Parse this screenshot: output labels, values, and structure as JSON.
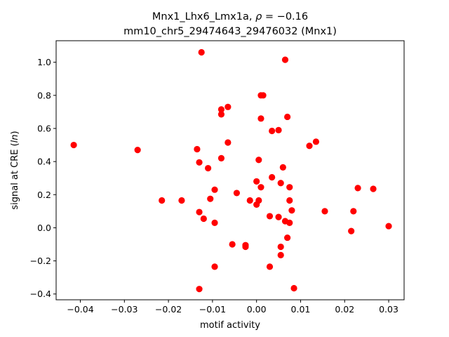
{
  "chart_data": {
    "type": "scatter",
    "title_line1": "Mnx1_Lhx6_Lmx1a, ",
    "title_rho": "ρ",
    "title_rho_value": " = −0.16",
    "title_line2": "mm10_chr5_29474643_29476032 (Mnx1)",
    "xlabel": "motif activity",
    "ylabel_prefix": "signal at CRE (",
    "ylabel_var": "ln",
    "ylabel_suffix": ")",
    "xlim": [
      -0.0455,
      0.0335
    ],
    "ylim": [
      -0.435,
      1.13
    ],
    "x_ticks": [
      -0.04,
      -0.03,
      -0.02,
      -0.01,
      0.0,
      0.01,
      0.02,
      0.03
    ],
    "x_tick_labels": [
      "−0.04",
      "−0.03",
      "−0.02",
      "−0.01",
      "0.00",
      "0.01",
      "0.02",
      "0.03"
    ],
    "y_ticks": [
      -0.4,
      -0.2,
      0.0,
      0.2,
      0.4,
      0.6,
      0.8,
      1.0
    ],
    "y_tick_labels": [
      "−0.4",
      "−0.2",
      "0.0",
      "0.2",
      "0.4",
      "0.6",
      "0.8",
      "1.0"
    ],
    "grid": false,
    "marker_color": "#ff0000",
    "points": [
      {
        "x": -0.0415,
        "y": 0.5
      },
      {
        "x": -0.027,
        "y": 0.47
      },
      {
        "x": -0.0215,
        "y": 0.165
      },
      {
        "x": -0.017,
        "y": 0.165
      },
      {
        "x": -0.0135,
        "y": 0.475
      },
      {
        "x": -0.013,
        "y": 0.395
      },
      {
        "x": -0.013,
        "y": 0.095
      },
      {
        "x": -0.013,
        "y": -0.37
      },
      {
        "x": -0.0125,
        "y": 1.06
      },
      {
        "x": -0.012,
        "y": 0.055
      },
      {
        "x": -0.011,
        "y": 0.36
      },
      {
        "x": -0.0105,
        "y": 0.175
      },
      {
        "x": -0.0095,
        "y": 0.23
      },
      {
        "x": -0.0095,
        "y": 0.03
      },
      {
        "x": -0.0095,
        "y": -0.235
      },
      {
        "x": -0.008,
        "y": 0.715
      },
      {
        "x": -0.008,
        "y": 0.685
      },
      {
        "x": -0.008,
        "y": 0.42
      },
      {
        "x": -0.0065,
        "y": 0.73
      },
      {
        "x": -0.0065,
        "y": 0.515
      },
      {
        "x": -0.0055,
        "y": -0.1
      },
      {
        "x": -0.0045,
        "y": 0.21
      },
      {
        "x": -0.0025,
        "y": -0.105
      },
      {
        "x": -0.0025,
        "y": -0.115
      },
      {
        "x": -0.0015,
        "y": 0.165
      },
      {
        "x": 0.0,
        "y": 0.28
      },
      {
        "x": 0.0,
        "y": 0.14
      },
      {
        "x": 0.0005,
        "y": 0.41
      },
      {
        "x": 0.0005,
        "y": 0.165
      },
      {
        "x": 0.001,
        "y": 0.8
      },
      {
        "x": 0.001,
        "y": 0.66
      },
      {
        "x": 0.001,
        "y": 0.245
      },
      {
        "x": 0.0015,
        "y": 0.8
      },
      {
        "x": 0.003,
        "y": 0.07
      },
      {
        "x": 0.003,
        "y": -0.235
      },
      {
        "x": 0.0035,
        "y": 0.585
      },
      {
        "x": 0.0035,
        "y": 0.305
      },
      {
        "x": 0.005,
        "y": 0.59
      },
      {
        "x": 0.005,
        "y": 0.065
      },
      {
        "x": 0.0055,
        "y": 0.27
      },
      {
        "x": 0.0055,
        "y": -0.115
      },
      {
        "x": 0.0055,
        "y": -0.165
      },
      {
        "x": 0.006,
        "y": 0.365
      },
      {
        "x": 0.0065,
        "y": 1.015
      },
      {
        "x": 0.0065,
        "y": 0.04
      },
      {
        "x": 0.007,
        "y": 0.67
      },
      {
        "x": 0.007,
        "y": -0.06
      },
      {
        "x": 0.0075,
        "y": 0.245
      },
      {
        "x": 0.0075,
        "y": 0.165
      },
      {
        "x": 0.0075,
        "y": 0.03
      },
      {
        "x": 0.008,
        "y": 0.105
      },
      {
        "x": 0.0085,
        "y": -0.365
      },
      {
        "x": 0.012,
        "y": 0.495
      },
      {
        "x": 0.0135,
        "y": 0.52
      },
      {
        "x": 0.0155,
        "y": 0.1
      },
      {
        "x": 0.0215,
        "y": -0.02
      },
      {
        "x": 0.022,
        "y": 0.1
      },
      {
        "x": 0.023,
        "y": 0.24
      },
      {
        "x": 0.0265,
        "y": 0.235
      },
      {
        "x": 0.03,
        "y": 0.01
      }
    ]
  }
}
